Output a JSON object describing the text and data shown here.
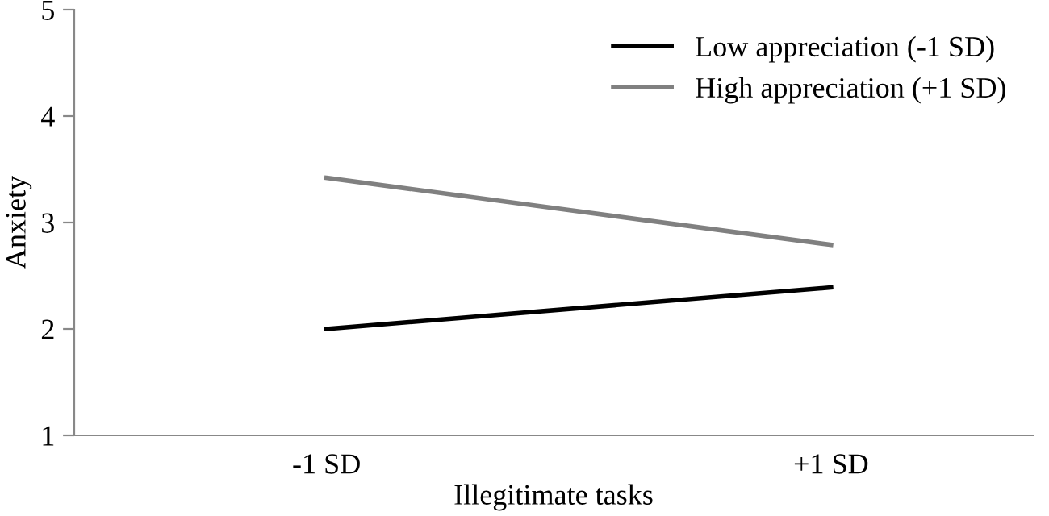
{
  "chart_data": {
    "type": "line",
    "xlabel": "Illegitimate tasks",
    "ylabel": "Anxiety",
    "x": [
      -1,
      1
    ],
    "series": [
      {
        "name": "Low appreciation (-1 SD)",
        "color": "#000000",
        "values": [
          2.0,
          2.39
        ]
      },
      {
        "name": "High appreciation (+1 SD)",
        "color": "#808080",
        "values": [
          3.42,
          2.79
        ]
      }
    ],
    "xlim": [
      -2,
      1.8
    ],
    "xticks": [
      {
        "value": -1,
        "label": "-1 SD"
      },
      {
        "value": 1,
        "label": "+1 SD"
      }
    ],
    "ylim": [
      1,
      5
    ],
    "yticks": [
      1,
      2,
      3,
      4,
      5
    ],
    "grid": false,
    "legend": "top right",
    "marker": "none",
    "line_style": "solid"
  }
}
